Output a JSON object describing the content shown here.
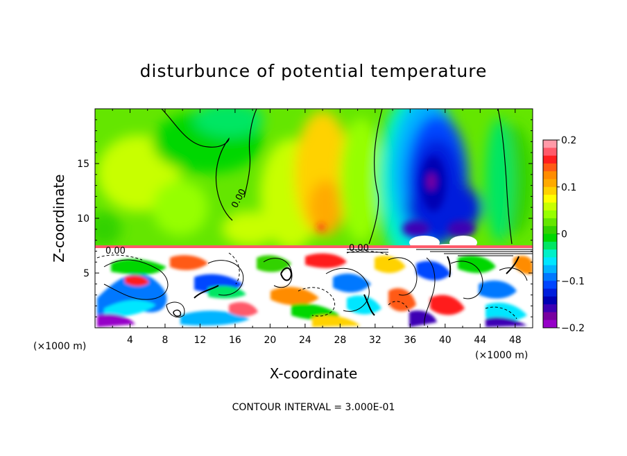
{
  "chart_data": {
    "type": "heatmap",
    "title": "disturbunce of potential temperature",
    "xlabel": "X-coordinate",
    "ylabel": "Z-coordinate",
    "x_unit": "(×1000 m)",
    "xlim": [
      0,
      50
    ],
    "ylim": [
      0,
      20
    ],
    "x_ticks": [
      4,
      8,
      12,
      16,
      20,
      24,
      28,
      32,
      36,
      40,
      44,
      48
    ],
    "y_ticks": [
      5,
      10,
      15
    ],
    "colorbar": {
      "range": [
        -0.2,
        0.2
      ],
      "tick_labels": [
        "0.2",
        "0.1",
        "0",
        "−0.1",
        "−0.2"
      ],
      "tick_values": [
        0.2,
        0.1,
        0,
        -0.1,
        -0.2
      ],
      "colors": [
        "#ff9aa8",
        "#ff5a6a",
        "#ff1e1e",
        "#ff5a14",
        "#ff8c00",
        "#ffaa00",
        "#ffd200",
        "#ffff00",
        "#c8ff00",
        "#96ff00",
        "#64e600",
        "#32d200",
        "#00d700",
        "#00e664",
        "#00f0c8",
        "#00e6ff",
        "#00b4ff",
        "#0078ff",
        "#0046ff",
        "#001edc",
        "#0000b4",
        "#3c00b4",
        "#7800a0",
        "#9600c8"
      ]
    },
    "contour_labels": [
      "0.00",
      "0.00",
      "0.00"
    ],
    "annotations": [
      "CONTOUR INTERVAL = 3.000E-01"
    ]
  }
}
